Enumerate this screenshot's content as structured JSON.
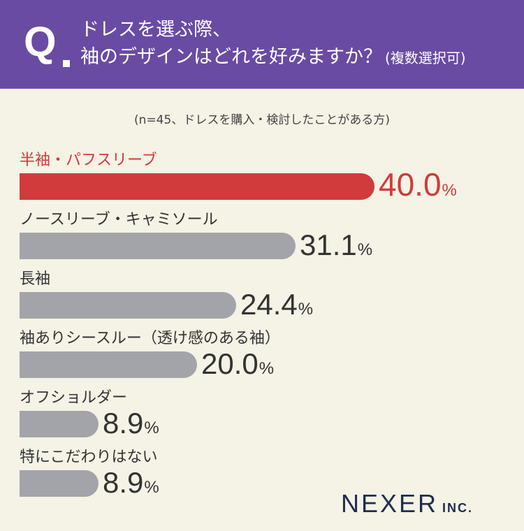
{
  "question": {
    "mark": "Q",
    "line1": "ドレスを選ぶ際、",
    "line2": "袖のデザインはどれを好みますか？",
    "note": "(複数選択可)"
  },
  "survey_note": "(n=45、ドレスを購入・検討したことがある方)",
  "chart_data": {
    "type": "bar",
    "orientation": "horizontal",
    "categories": [
      "半袖・パフスリーブ",
      "ノースリーブ・キャミソール",
      "長袖",
      "袖ありシースルー（透け感のある袖）",
      "オフショルダー",
      "特にこだわりはない"
    ],
    "values": [
      40.0,
      31.1,
      24.4,
      20.0,
      8.9,
      8.9
    ],
    "value_labels": [
      "40.0",
      "31.1",
      "24.4",
      "20.0",
      "8.9",
      "8.9"
    ],
    "unit": "%",
    "highlight_index": 0,
    "colors": {
      "highlight": "#d13b3b",
      "default": "#a3a4a9"
    }
  },
  "logo": {
    "main": "NEXER",
    "sub": "INC."
  }
}
